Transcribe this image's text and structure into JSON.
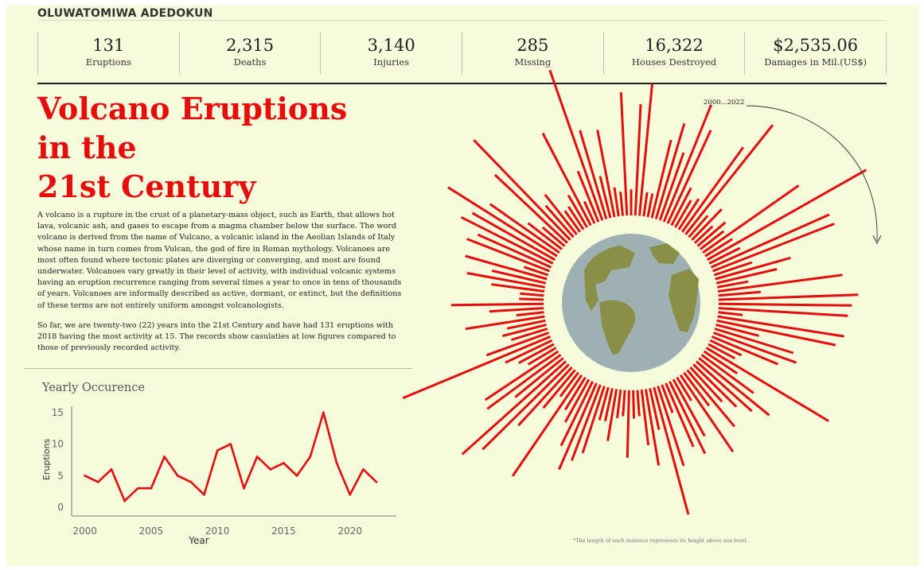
{
  "author": "OLUWATOMIWA ADEDOKUN",
  "kpis": [
    {
      "value": "131",
      "label": "Eruptions"
    },
    {
      "value": "2,315",
      "label": "Deaths"
    },
    {
      "value": "3,140",
      "label": "Injuries"
    },
    {
      "value": "285",
      "label": "Missing"
    },
    {
      "value": "16,322",
      "label": "Houses Destroyed"
    },
    {
      "value": "$2,535.06",
      "label": "Damages in Mil.(US$)"
    }
  ],
  "title": {
    "line1": "Volcano Eruptions",
    "line2": "in the",
    "line3": "21st Century"
  },
  "body": {
    "p1": "A volcano is a rupture in the crust of a planetary-mass object, such as Earth, that allows hot lava, volcanic ash, and gases to escape from a magma chamber below the surface. The word volcano is derived from the name of Vulcano, a volcanic island in the Aeolian Islands of Italy whose name in turn comes from Vulcan, the god of fire in Roman mythology. Volcanoes are most often found where tectonic plates are diverging or converging, and most are found underwater.  Volcanoes vary greatly in their level of activity, with individual volcanic systems having an eruption recurrence ranging from several times a year to once in tens of thousands of years. Volcanoes are informally described as active, dormant, or extinct, but the definitions of these terms are not entirely uniform amongst volcanologists.",
    "p2": "So far, we are twenty-two (22) years into the 21st Century and have had 131 eruptions with 2018 having the most activity at 15. The records show casulaties at low figures compared to those of previously recorded activity."
  },
  "radial": {
    "range_label": "2000...2022",
    "footnote": "*The length of each instance represents its height above sea level.",
    "bar_color": "#e30f0f",
    "globe_ocean": "#9fb0b3",
    "globe_land": "#8a8f48"
  },
  "chart_data": {
    "type": "line",
    "title": "Yearly Occurence",
    "xlabel": "Year",
    "ylabel": "Eruptions",
    "x": [
      2000,
      2001,
      2002,
      2003,
      2004,
      2005,
      2006,
      2007,
      2008,
      2009,
      2010,
      2011,
      2012,
      2013,
      2014,
      2015,
      2016,
      2017,
      2018,
      2019,
      2020,
      2021,
      2022
    ],
    "series": [
      {
        "values": [
          5,
          4,
          6,
          1,
          3,
          3,
          8,
          5,
          4,
          2,
          9,
          10,
          3,
          8,
          6,
          7,
          5,
          8,
          15,
          7,
          2,
          6,
          4
        ]
      }
    ],
    "x_ticks": [
      2000,
      2005,
      2010,
      2015,
      2020
    ],
    "y_ticks": [
      0,
      5,
      10,
      15
    ],
    "xlim": [
      1999,
      2023.5
    ],
    "ylim": [
      -1,
      16
    ],
    "color": "#e30f0f",
    "grid": false
  }
}
